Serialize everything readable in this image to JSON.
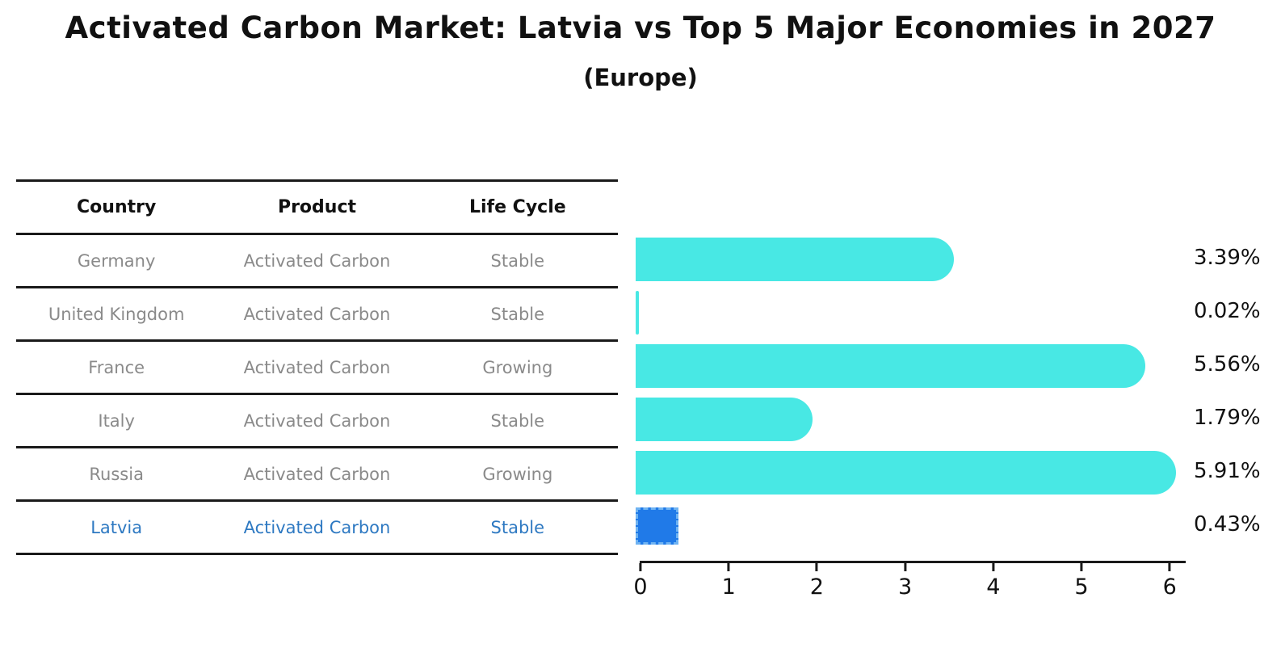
{
  "title": "Activated Carbon Market: Latvia vs Top 5 Major Economies in 2027",
  "subtitle": "(Europe)",
  "table": {
    "headers": {
      "country": "Country",
      "product": "Product",
      "life_cycle": "Life Cycle"
    },
    "rows": [
      {
        "country": "Germany",
        "product": "Activated Carbon",
        "life_cycle": "Stable",
        "highlight": false
      },
      {
        "country": "United Kingdom",
        "product": "Activated Carbon",
        "life_cycle": "Stable",
        "highlight": false
      },
      {
        "country": "France",
        "product": "Activated Carbon",
        "life_cycle": "Growing",
        "highlight": false
      },
      {
        "country": "Italy",
        "product": "Activated Carbon",
        "life_cycle": "Stable",
        "highlight": false
      },
      {
        "country": "Russia",
        "product": "Activated Carbon",
        "life_cycle": "Growing",
        "highlight": false
      },
      {
        "country": "Latvia",
        "product": "Activated Carbon",
        "life_cycle": "Stable",
        "highlight": true
      }
    ]
  },
  "chart_data": {
    "type": "bar",
    "orientation": "horizontal",
    "title": "Activated Carbon Market: Latvia vs Top 5 Major Economies in 2027 (Europe)",
    "categories": [
      "Germany",
      "United Kingdom",
      "France",
      "Italy",
      "Russia",
      "Latvia"
    ],
    "values": [
      3.39,
      0.02,
      5.56,
      1.79,
      5.91,
      0.43
    ],
    "value_labels": [
      "3.39%",
      "0.02%",
      "5.56%",
      "1.79%",
      "5.91%",
      "0.43%"
    ],
    "highlight_index": 5,
    "xticks": [
      0,
      1,
      2,
      3,
      4,
      5,
      6
    ],
    "xlim": [
      0,
      6.2
    ],
    "grid": false,
    "legend": false
  },
  "colors": {
    "bar": "#48E8E4",
    "highlight_bar": "#207AE8",
    "highlight_border": "#6FB3F2",
    "table_text": "#8A8A8A",
    "header_text": "#111111",
    "highlight_text": "#2E79C2",
    "axis": "#1A1A1A",
    "title_text": "#111111"
  }
}
